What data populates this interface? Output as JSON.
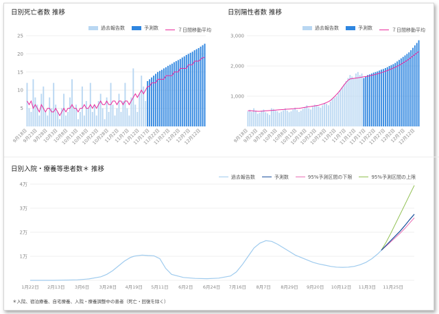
{
  "colors": {
    "past_bar": "#b9d7f2",
    "forecast_bar": "#2f86e0",
    "avg_line": "#e8299c",
    "forecast_line": "#1a4f9c",
    "lower_line": "#ea6fb5",
    "upper_line": "#8fbf4f",
    "past_line": "#9fcbee",
    "grid": "#efefef",
    "axis_text": "#888888"
  },
  "footnote": "＊入院、宿泊療養、自宅療養、入院・療養調整中の患者（死亡・回復を除く）",
  "chart_data": [
    {
      "id": "deaths",
      "type": "bar",
      "title": "日別死亡者数 推移",
      "legend": [
        {
          "label": "過去報告数",
          "kind": "box",
          "color": "#b9d7f2"
        },
        {
          "label": "予測数",
          "kind": "box",
          "color": "#2f86e0"
        },
        {
          "label": "７日間移動平均",
          "kind": "line",
          "color": "#e8299c"
        }
      ],
      "yticks": [
        5,
        10,
        15,
        20,
        25
      ],
      "ytick_labels": [
        "5",
        "10",
        "15",
        "20",
        "25"
      ],
      "ylim": [
        0,
        25
      ],
      "xtick_labels": [
        "9月18日",
        "9月23日",
        "9月28日",
        "10月3日",
        "10月8日",
        "10月13日",
        "10月18日",
        "10月23日",
        "10月28日",
        "11月2日",
        "11月7日",
        "11月12日",
        "11月17日",
        "11月22日",
        "11月27日",
        "12月2日",
        "12月7日",
        "12月12日"
      ],
      "n_days": 88,
      "forecast_start": 59,
      "values": [
        12,
        5,
        4,
        13,
        8,
        6,
        3,
        9,
        11,
        4,
        3,
        8,
        5,
        12,
        6,
        4,
        2,
        5,
        9,
        3,
        4,
        8,
        13,
        5,
        6,
        2,
        4,
        11,
        3,
        7,
        5,
        12,
        4,
        6,
        3,
        7,
        9,
        5,
        2,
        8,
        4,
        12,
        6,
        3,
        5,
        9,
        4,
        7,
        12,
        5,
        3,
        8,
        16,
        6,
        4,
        9,
        14,
        11,
        7,
        12.5,
        13,
        13.5,
        14,
        14.5,
        15,
        15.3,
        15.6,
        16,
        16.3,
        16.7,
        17,
        17.3,
        17.7,
        18,
        18.3,
        18.6,
        19,
        19.3,
        19.7,
        20,
        20.3,
        20.6,
        21,
        21.3,
        21.6,
        22,
        22.4,
        22.8
      ],
      "moving_avg": [
        7,
        6,
        7,
        5,
        6,
        5,
        4,
        6,
        5,
        4,
        5,
        5,
        4,
        4,
        5,
        4,
        3,
        4,
        5,
        4,
        5,
        5,
        6,
        5,
        5,
        4,
        5,
        5,
        6,
        5,
        5,
        6,
        5,
        6,
        5,
        6,
        7,
        6,
        6,
        7,
        6,
        6,
        7,
        7,
        6,
        7,
        7,
        6,
        7,
        7,
        6,
        7,
        8,
        9,
        8,
        9,
        10,
        9,
        10,
        11,
        11,
        12,
        12,
        12,
        13,
        13,
        13,
        13,
        14,
        14,
        14,
        14,
        15,
        15,
        15,
        16,
        16,
        16,
        16,
        17,
        17,
        17,
        18,
        18,
        18,
        18.5,
        19,
        19
      ]
    },
    {
      "id": "positives",
      "type": "bar",
      "title": "日別陽性者数 推移",
      "legend": [
        {
          "label": "過去報告数",
          "kind": "box",
          "color": "#b9d7f2"
        },
        {
          "label": "予測数",
          "kind": "box",
          "color": "#2f86e0"
        },
        {
          "label": "７日間移動平均",
          "kind": "line",
          "color": "#e8299c"
        }
      ],
      "yticks": [
        1000,
        2000,
        3000
      ],
      "ytick_labels": [
        "1,000",
        "2,000",
        "3,000"
      ],
      "ylim": [
        0,
        3000
      ],
      "xtick_labels": [
        "9月18日",
        "9月23日",
        "9月28日",
        "10月3日",
        "10月8日",
        "10月13日",
        "10月18日",
        "10月23日",
        "10月28日",
        "11月2日",
        "11月7日",
        "11月12日",
        "11月17日",
        "11月22日",
        "11月27日",
        "12月2日",
        "12月7日",
        "12月12日"
      ],
      "n_days": 88,
      "forecast_start": 59,
      "values": [
        500,
        550,
        480,
        600,
        520,
        420,
        450,
        520,
        560,
        470,
        430,
        380,
        600,
        580,
        520,
        500,
        450,
        490,
        530,
        600,
        520,
        470,
        500,
        560,
        620,
        540,
        480,
        520,
        580,
        640,
        700,
        600,
        560,
        650,
        720,
        700,
        660,
        620,
        700,
        780,
        750,
        700,
        820,
        900,
        950,
        1000,
        1100,
        1200,
        1300,
        1400,
        1500,
        1600,
        1700,
        1650,
        1600,
        1750,
        1800,
        1700,
        1750,
        1600,
        1650,
        1700,
        1720,
        1750,
        1780,
        1800,
        1820,
        1850,
        1880,
        1900,
        1930,
        1960,
        2000,
        2030,
        2060,
        2100,
        2150,
        2200,
        2250,
        2300,
        2350,
        2400,
        2450,
        2520,
        2600,
        2680,
        2760,
        2850
      ],
      "moving_avg": [
        520,
        520,
        515,
        510,
        505,
        500,
        500,
        505,
        510,
        515,
        520,
        525,
        530,
        535,
        540,
        545,
        550,
        555,
        560,
        565,
        570,
        575,
        580,
        585,
        590,
        595,
        600,
        610,
        620,
        630,
        640,
        650,
        660,
        670,
        680,
        690,
        700,
        720,
        740,
        760,
        790,
        820,
        860,
        920,
        980,
        1050,
        1120,
        1200,
        1290,
        1380,
        1460,
        1530,
        1570,
        1580,
        1590,
        1600,
        1610,
        1620,
        1630,
        1640,
        1650,
        1660,
        1675,
        1690,
        1705,
        1720,
        1740,
        1760,
        1780,
        1800,
        1825,
        1850,
        1875,
        1900,
        1930,
        1960,
        1990,
        2020,
        2060,
        2100,
        2140,
        2180,
        2230,
        2280,
        2330,
        2380,
        2430,
        2480
      ]
    },
    {
      "id": "inpatients",
      "type": "line",
      "title": "日別入院・療養等患者数＊ 推移",
      "legend": [
        {
          "label": "過去報告数",
          "kind": "line",
          "color": "#9fcbee"
        },
        {
          "label": "予測数",
          "kind": "line",
          "color": "#1a4f9c"
        },
        {
          "label": "95%予測区間の下限",
          "kind": "line",
          "color": "#ea6fb5"
        },
        {
          "label": "95%予測区間の上限",
          "kind": "line",
          "color": "#8fbf4f"
        }
      ],
      "yticks": [
        10000,
        20000,
        30000,
        40000
      ],
      "ytick_labels": [
        "1万",
        "2万",
        "3万",
        "4万"
      ],
      "ylim": [
        0,
        40000
      ],
      "xtick_labels": [
        "1月22日",
        "2月13日",
        "3月6日",
        "3月28日",
        "4月19日",
        "5月11日",
        "6月2日",
        "6月24日",
        "7月16日",
        "8月7日",
        "8月29日",
        "9月20日",
        "10月12日",
        "11月3日",
        "11月25日"
      ],
      "past": {
        "x": [
          0,
          20,
          40,
          50,
          60,
          65,
          70,
          75,
          80,
          85,
          88,
          90,
          95,
          100,
          105,
          110,
          115,
          120,
          130,
          140,
          150,
          160,
          170,
          175,
          180,
          185,
          190,
          195,
          200,
          205,
          210,
          215,
          220,
          225,
          230,
          235,
          240,
          245,
          250,
          255,
          260,
          265,
          270,
          275,
          280,
          285,
          290,
          295,
          298
        ],
        "y": [
          0,
          0,
          200,
          600,
          1500,
          2500,
          4000,
          6000,
          8000,
          9500,
          10000,
          10200,
          10500,
          10300,
          10200,
          9000,
          5000,
          2500,
          1200,
          800,
          700,
          900,
          1800,
          3500,
          6500,
          10000,
          13500,
          15500,
          16500,
          16200,
          15000,
          13500,
          12000,
          10500,
          9500,
          8500,
          7500,
          6800,
          6300,
          5800,
          5500,
          5400,
          5500,
          5800,
          6500,
          7500,
          9000,
          11000,
          12500
        ]
      },
      "forecast": {
        "x": [
          298,
          302,
          306,
          310,
          314,
          318,
          322,
          326
        ],
        "y": [
          12500,
          14500,
          16500,
          18500,
          20500,
          22800,
          25200,
          27500
        ]
      },
      "lower": {
        "x": [
          298,
          302,
          306,
          310,
          314,
          318,
          322,
          326
        ],
        "y": [
          12500,
          14200,
          16000,
          17800,
          19600,
          21600,
          23800,
          26000
        ]
      },
      "upper": {
        "x": [
          298,
          302,
          306,
          310,
          314,
          318,
          322,
          326
        ],
        "y": [
          12500,
          15800,
          19500,
          23500,
          27500,
          31500,
          35500,
          39500
        ]
      },
      "x_range": [
        0,
        326
      ]
    }
  ]
}
